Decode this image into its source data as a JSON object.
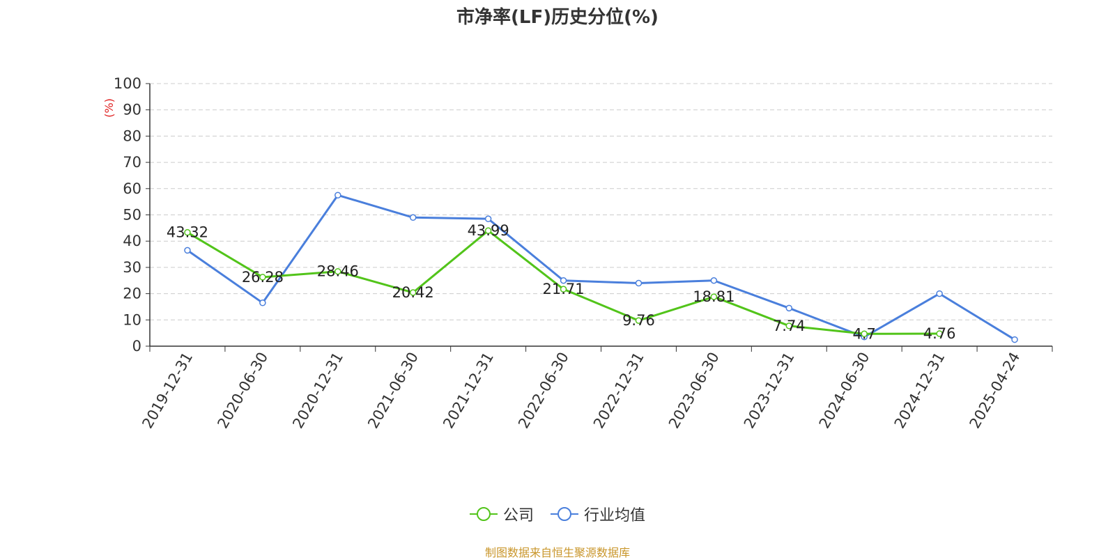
{
  "title": "市净率(LF)历史分位(%)",
  "source": "制图数据来自恒生聚源数据库",
  "colors": {
    "company": "#52c41a",
    "industry": "#4a7fdc",
    "unit_label": "#e02020",
    "grid": "#cccccc",
    "axis": "#333333",
    "source": "#c9962b"
  },
  "legend": [
    {
      "name": "公司",
      "color": "#52c41a"
    },
    {
      "name": "行业均值",
      "color": "#4a7fdc"
    }
  ],
  "chart_data": {
    "type": "line",
    "ylabel": "(%)",
    "ylim": [
      0,
      100
    ],
    "yticks": [
      0,
      10,
      20,
      30,
      40,
      50,
      60,
      70,
      80,
      90,
      100
    ],
    "grid": true,
    "legend_position": "bottom-center",
    "categories": [
      "2019-12-31",
      "2020-06-30",
      "2020-12-31",
      "2021-06-30",
      "2021-12-31",
      "2022-06-30",
      "2022-12-31",
      "2023-06-30",
      "2023-12-31",
      "2024-06-30",
      "2024-12-31",
      "2025-04-24"
    ],
    "series": [
      {
        "name": "公司",
        "color": "#52c41a",
        "values": [
          43.32,
          26.28,
          28.46,
          20.42,
          43.99,
          21.71,
          9.76,
          18.81,
          7.74,
          4.7,
          4.76,
          null
        ],
        "labels": [
          "43.32",
          "26.28",
          "28.46",
          "20.42",
          "43.99",
          "21.71",
          "9.76",
          "18.81",
          "7.74",
          "4.7",
          "4.76",
          ""
        ]
      },
      {
        "name": "行业均值",
        "color": "#4a7fdc",
        "values": [
          36.5,
          16.5,
          57.5,
          49,
          48.5,
          25,
          24,
          25,
          14.5,
          3.5,
          20,
          2.5
        ]
      }
    ]
  }
}
